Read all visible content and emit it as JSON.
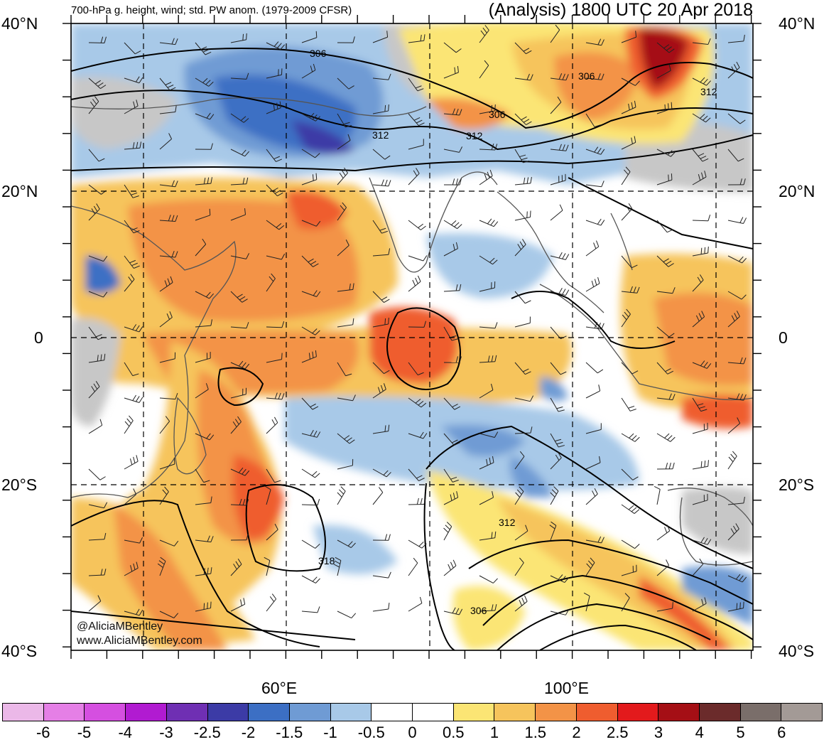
{
  "header": {
    "left_title": "700-hPa g. height, wind; std. PW anom. (1979-2009 CFSR)",
    "right_title": "(Analysis) 1800 UTC 20 Apr 2018"
  },
  "axes": {
    "lat_labels": [
      "40°N",
      "20°N",
      "0",
      "20°S",
      "40°S"
    ],
    "lon_labels": [
      "60°E",
      "100°E"
    ]
  },
  "contour_labels": [
    "306",
    "306",
    "306",
    "312",
    "312",
    "312",
    "318",
    "312",
    "306"
  ],
  "credits": {
    "handle": "@AliciaMBentley",
    "website": "www.AliciaMBentley.com"
  },
  "colorbar": {
    "colors": [
      "#ebb8e8",
      "#e57fe6",
      "#d54fe0",
      "#b11bd1",
      "#6f2fb3",
      "#3c3ba6",
      "#3c6fc4",
      "#6f9bd4",
      "#a8c9e8",
      "#ffffff",
      "#ffffff",
      "#fbe574",
      "#f6c45c",
      "#f39347",
      "#ef5d2f",
      "#e31a1c",
      "#a50f15",
      "#6b2b2b",
      "#7a6e6a",
      "#a39a96"
    ],
    "labels": [
      "-6",
      "-5",
      "-4",
      "-3",
      "-2.5",
      "-2",
      "-1.5",
      "-1",
      "-0.5",
      "0",
      "0.5",
      "1",
      "1.5",
      "2",
      "2.5",
      "3",
      "4",
      "5",
      "6"
    ]
  }
}
